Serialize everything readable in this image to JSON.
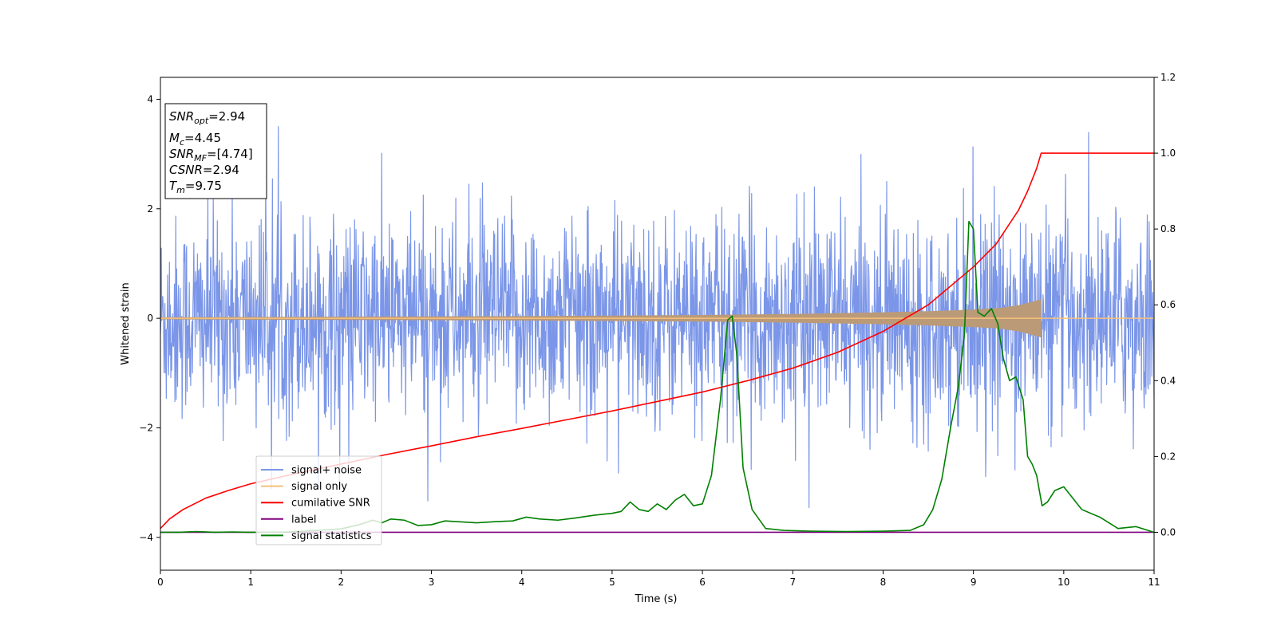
{
  "chart_data": {
    "type": "line",
    "title": "",
    "xlabel": "Time (s)",
    "ylabel": "Whitened strain",
    "xlim": [
      0,
      11
    ],
    "ylim": [
      -4.6,
      4.4
    ],
    "y2lim": [
      -0.1,
      1.2
    ],
    "x_ticks": [
      0,
      1,
      2,
      3,
      4,
      5,
      6,
      7,
      8,
      9,
      10,
      11
    ],
    "y_ticks": [
      -4,
      -2,
      0,
      2,
      4
    ],
    "y_tick_labels": [
      "−4",
      "−2",
      "0",
      "2",
      "4"
    ],
    "y2_ticks": [
      0.0,
      0.2,
      0.4,
      0.6,
      0.8,
      1.0,
      1.2
    ],
    "y2_tick_labels": [
      "0.0",
      "0.2",
      "0.4",
      "0.6",
      "0.8",
      "1.0",
      "1.2"
    ],
    "grid": false,
    "legend_position": "lower-left",
    "info_box": {
      "snr_opt": {
        "base": "SNR",
        "sub": "opt",
        "value": "=2.94"
      },
      "mc": {
        "base": "M",
        "sub": "c",
        "value": "=4.45"
      },
      "snr_mf": {
        "base": "SNR",
        "sub": "MF",
        "value": "=[4.74]"
      },
      "csnr": {
        "base": "CSNR",
        "sub": "",
        "value": "=2.94"
      },
      "tm": {
        "base": "T",
        "sub": "m",
        "value": "=9.75"
      }
    },
    "series": [
      {
        "name": "signal+ noise",
        "axis": "left",
        "color": "#7b96e8",
        "style": "noise",
        "description_band": {
          "typical_range": [
            -2.0,
            2.0
          ],
          "peak_max": 4.0,
          "peak_min": -4.2,
          "sample_count": 2200,
          "x_range": [
            0,
            11
          ]
        }
      },
      {
        "name": "signal only",
        "axis": "left",
        "color": "#f5c07a",
        "style": "chirp",
        "envelope": {
          "x": [
            0,
            2,
            4,
            6,
            7,
            8,
            8.5,
            9,
            9.3,
            9.5,
            9.65,
            9.75
          ],
          "amp": [
            0.02,
            0.03,
            0.04,
            0.06,
            0.08,
            0.11,
            0.13,
            0.16,
            0.19,
            0.24,
            0.3,
            0.35
          ]
        },
        "end_x": 9.75
      },
      {
        "name": "cumilative SNR",
        "axis": "right",
        "color": "#ff0000",
        "x": [
          0,
          0.1,
          0.25,
          0.5,
          0.75,
          1,
          1.5,
          2,
          2.5,
          3,
          3.5,
          4,
          4.5,
          5,
          5.5,
          6,
          6.5,
          7,
          7.5,
          8,
          8.5,
          9,
          9.25,
          9.5,
          9.6,
          9.7,
          9.75,
          11
        ],
        "y": [
          0.01,
          0.035,
          0.06,
          0.09,
          0.11,
          0.128,
          0.155,
          0.18,
          0.205,
          0.228,
          0.252,
          0.274,
          0.297,
          0.32,
          0.345,
          0.37,
          0.4,
          0.433,
          0.475,
          0.53,
          0.6,
          0.7,
          0.76,
          0.85,
          0.9,
          0.96,
          1.0,
          1.0
        ]
      },
      {
        "name": "label",
        "axis": "right",
        "color": "#800080",
        "x": [
          0,
          11
        ],
        "y": [
          0,
          0
        ]
      },
      {
        "name": "signal statistics",
        "axis": "right",
        "color": "#008000",
        "x": [
          0,
          0.2,
          0.4,
          0.6,
          0.8,
          1.0,
          1.2,
          1.4,
          1.6,
          1.8,
          2.0,
          2.2,
          2.35,
          2.45,
          2.55,
          2.7,
          2.85,
          3.0,
          3.15,
          3.3,
          3.5,
          3.7,
          3.9,
          4.05,
          4.2,
          4.4,
          4.6,
          4.8,
          5.0,
          5.1,
          5.2,
          5.3,
          5.4,
          5.5,
          5.6,
          5.7,
          5.8,
          5.9,
          6.0,
          6.1,
          6.2,
          6.28,
          6.33,
          6.38,
          6.45,
          6.55,
          6.7,
          6.9,
          7.2,
          7.6,
          8.0,
          8.3,
          8.45,
          8.55,
          8.65,
          8.75,
          8.83,
          8.9,
          8.95,
          9.0,
          9.05,
          9.12,
          9.2,
          9.27,
          9.33,
          9.4,
          9.47,
          9.55,
          9.6,
          9.65,
          9.7,
          9.76,
          9.82,
          9.9,
          10.0,
          10.2,
          10.4,
          10.6,
          10.8,
          11.0
        ],
        "y": [
          0.0,
          0.0,
          0.002,
          0.0,
          0.001,
          0.0,
          0.0,
          0.001,
          0.003,
          0.006,
          0.009,
          0.02,
          0.032,
          0.025,
          0.035,
          0.032,
          0.018,
          0.02,
          0.03,
          0.028,
          0.025,
          0.028,
          0.03,
          0.04,
          0.035,
          0.032,
          0.038,
          0.045,
          0.05,
          0.055,
          0.08,
          0.06,
          0.055,
          0.075,
          0.06,
          0.085,
          0.1,
          0.07,
          0.075,
          0.15,
          0.35,
          0.56,
          0.57,
          0.47,
          0.17,
          0.06,
          0.01,
          0.005,
          0.003,
          0.002,
          0.003,
          0.005,
          0.02,
          0.06,
          0.14,
          0.28,
          0.38,
          0.52,
          0.82,
          0.8,
          0.58,
          0.57,
          0.59,
          0.55,
          0.46,
          0.4,
          0.41,
          0.35,
          0.2,
          0.18,
          0.15,
          0.07,
          0.08,
          0.11,
          0.12,
          0.06,
          0.04,
          0.01,
          0.015,
          0.0
        ]
      }
    ]
  }
}
